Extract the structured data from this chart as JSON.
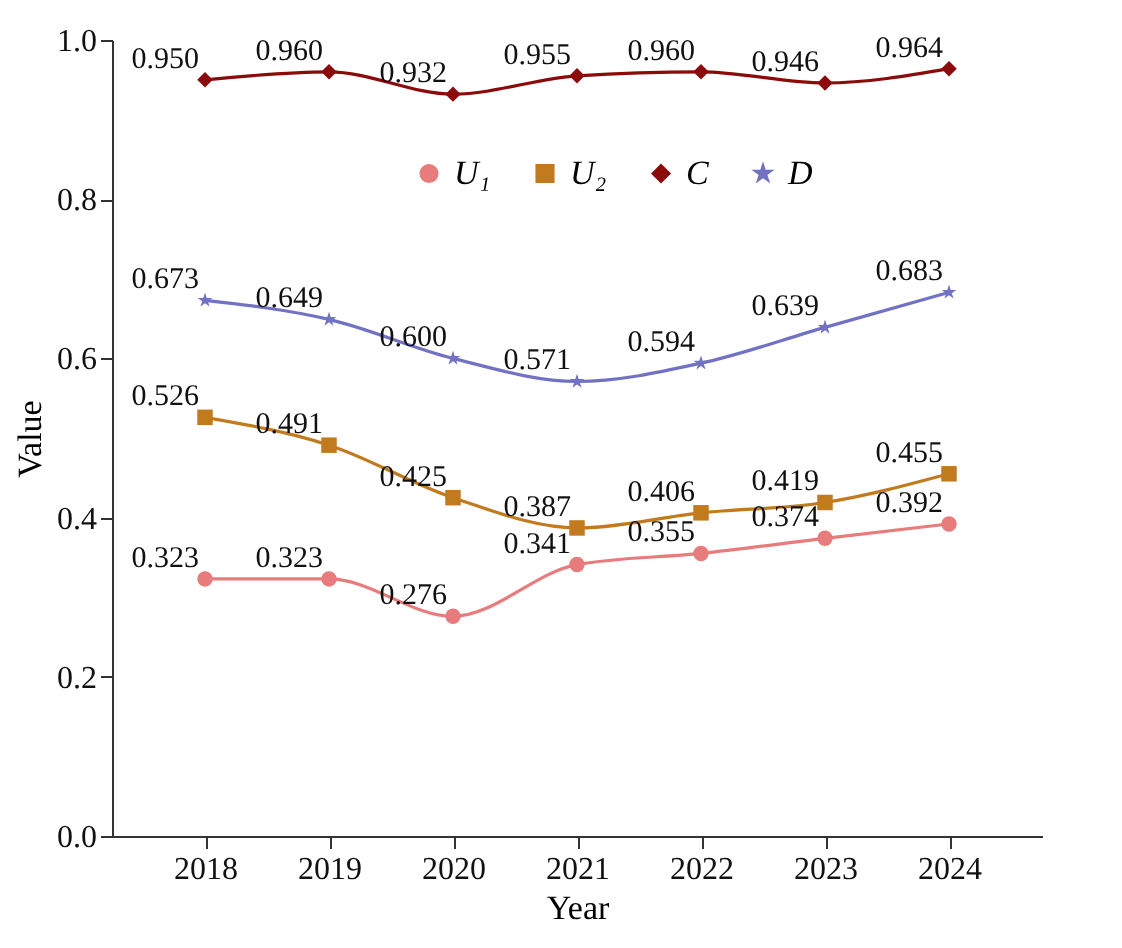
{
  "chart_data": {
    "type": "line",
    "xlabel": "Year",
    "ylabel": "Value",
    "categories": [
      "2018",
      "2019",
      "2020",
      "2021",
      "2022",
      "2023",
      "2024"
    ],
    "ylim": [
      0,
      1
    ],
    "yticks": [
      {
        "value": 0,
        "label": "0.0"
      },
      0.2,
      0.4,
      0.6,
      0.8,
      {
        "value": 1,
        "label": "1.0"
      }
    ],
    "grid": false,
    "legend": "top",
    "series": [
      {
        "name": "U₁",
        "color": "#e87b7b",
        "marker": "circle",
        "values": [
          0.323,
          0.323,
          0.276,
          0.341,
          0.355,
          0.374,
          0.392
        ],
        "value_labels": [
          "0.323",
          "0.323",
          "0.276",
          "0.341",
          "0.355",
          "0.374",
          "0.392"
        ]
      },
      {
        "name": "U₂",
        "color": "#c27a1e",
        "marker": "square",
        "values": [
          0.526,
          0.491,
          0.425,
          0.387,
          0.406,
          0.419,
          0.455
        ],
        "value_labels": [
          "0.526",
          "0.491",
          "0.425",
          "0.387",
          "0.406",
          "0.419",
          "0.455"
        ]
      },
      {
        "name": "C",
        "color": "#8b0a0a",
        "marker": "diamond",
        "values": [
          0.95,
          0.96,
          0.932,
          0.955,
          0.96,
          0.946,
          0.964
        ],
        "value_labels": [
          "0.950",
          "0.960",
          "0.932",
          "0.955",
          "0.960",
          "0.946",
          "0.964"
        ]
      },
      {
        "name": "D",
        "color": "#7272c4",
        "marker": "star",
        "values": [
          0.673,
          0.649,
          0.6,
          0.571,
          0.594,
          0.639,
          0.683
        ],
        "value_labels": [
          "0.673",
          "0.649",
          "0.600",
          "0.571",
          "0.594",
          "0.639",
          "0.683"
        ]
      }
    ]
  }
}
